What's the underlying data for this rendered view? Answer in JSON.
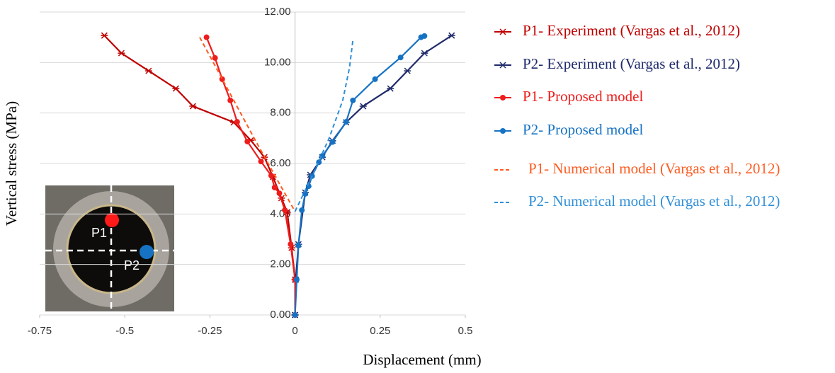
{
  "chart_data": {
    "type": "line",
    "x_label": "Displacement (mm)",
    "y_label": "Vertical stress (MPa)",
    "xlim": [
      -0.75,
      0.5
    ],
    "xticks": [
      -0.75,
      -0.5,
      -0.25,
      0,
      0.25,
      0.5
    ],
    "ylim": [
      0,
      12
    ],
    "yticks": [
      {
        "value": 0,
        "label": "0.00"
      },
      {
        "value": 2,
        "label": "2.00"
      },
      {
        "value": 4,
        "label": "4.00"
      },
      {
        "value": 6,
        "label": "6.00"
      },
      {
        "value": 8,
        "label": "8.00"
      },
      {
        "value": 10,
        "label": "10.00"
      },
      {
        "value": 12,
        "label": "12.00"
      }
    ],
    "grid": true,
    "legend": "right",
    "series": [
      {
        "name": "P1- Experiment (Vargas et al., 2012)",
        "color": "#c00000",
        "marker": "star",
        "dash": false,
        "x": [
          -0.56,
          -0.51,
          -0.43,
          -0.35,
          -0.3,
          -0.18,
          -0.13,
          -0.09,
          -0.065,
          -0.04,
          -0.023,
          -0.01,
          0,
          0
        ],
        "values": [
          11.07,
          10.37,
          9.67,
          8.97,
          8.27,
          7.63,
          6.92,
          6.25,
          5.47,
          4.63,
          4.07,
          2.66,
          1.4,
          0
        ]
      },
      {
        "name": "P2- Experiment (Vargas et al., 2012)",
        "color": "#1f2a6b",
        "marker": "star",
        "dash": false,
        "x": [
          0,
          0.002,
          0.01,
          0.03,
          0.045,
          0.08,
          0.11,
          0.15,
          0.2,
          0.28,
          0.33,
          0.38,
          0.46
        ],
        "values": [
          0,
          1.4,
          2.8,
          4.85,
          5.55,
          6.25,
          6.9,
          7.63,
          8.27,
          8.97,
          9.67,
          10.37,
          11.07
        ]
      },
      {
        "name": "P1- Proposed model",
        "color": "#ee1c1c",
        "marker": "circle",
        "dash": false,
        "x": [
          -0.26,
          -0.235,
          -0.214,
          -0.19,
          -0.17,
          -0.14,
          -0.1,
          -0.07,
          -0.06,
          -0.046,
          -0.03,
          -0.013,
          0,
          0
        ],
        "values": [
          11.0,
          10.18,
          9.34,
          8.5,
          7.65,
          6.87,
          6.08,
          5.52,
          5.05,
          4.82,
          4.15,
          2.8,
          1.4,
          0
        ]
      },
      {
        "name": "P2- Proposed model",
        "color": "#1673c4",
        "marker": "circle",
        "dash": false,
        "x": [
          0,
          0.005,
          0.01,
          0.02,
          0.03,
          0.04,
          0.05,
          0.07,
          0.08,
          0.11,
          0.15,
          0.17,
          0.235,
          0.31,
          0.37,
          0.38
        ],
        "values": [
          0,
          1.4,
          2.75,
          4.15,
          4.8,
          5.1,
          5.5,
          6.05,
          6.3,
          6.85,
          7.65,
          8.5,
          9.34,
          10.2,
          11.0,
          11.05
        ]
      },
      {
        "name": "P1- Numerical model (Vargas et al., 2012)",
        "color": "#ff5a1f",
        "marker": "none",
        "dash": true,
        "x": [
          -0.28,
          -0.2,
          -0.12,
          -0.05,
          0
        ],
        "values": [
          11.0,
          9.0,
          7.0,
          5.3,
          4.1
        ]
      },
      {
        "name": "P2- Numerical model (Vargas et al., 2012)",
        "color": "#2f8fd8",
        "marker": "none",
        "dash": true,
        "x": [
          0,
          0.05,
          0.1,
          0.14,
          0.16,
          0.17
        ],
        "values": [
          4.1,
          5.5,
          7.0,
          8.5,
          9.8,
          10.9
        ]
      }
    ],
    "inset_labels": [
      "P1",
      "P2"
    ]
  }
}
